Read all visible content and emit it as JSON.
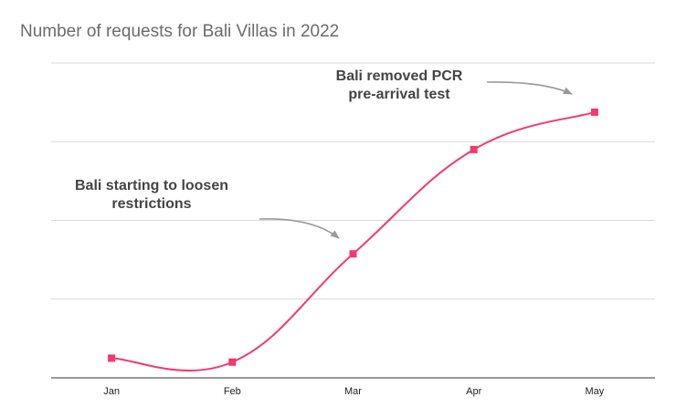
{
  "chart_data": {
    "type": "line",
    "title": "Number of requests for Bali Villas in 2022",
    "xlabel": "",
    "ylabel": "",
    "categories": [
      "Jan",
      "Feb",
      "Mar",
      "Apr",
      "May"
    ],
    "series": [
      {
        "values": [
          0.5,
          0.4,
          3.15,
          5.8,
          6.75
        ]
      }
    ],
    "ylim": [
      0,
      8
    ],
    "grid": true,
    "y_tick_labels_visible": false,
    "line_color": "#f5386b",
    "marker": "square",
    "smooth": true,
    "annotations": [
      {
        "lines": [
          "Bali starting to loosen",
          "restrictions"
        ],
        "target_category": "Mar"
      },
      {
        "lines": [
          "Bali removed PCR",
          "pre-arrival test"
        ],
        "target_category": "May"
      }
    ]
  }
}
